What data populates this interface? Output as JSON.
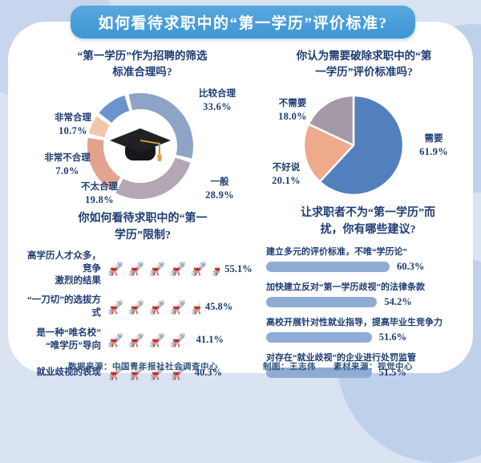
{
  "banner": {
    "title": "如何看待求职中的“第一学历”评价标准?"
  },
  "footer": {
    "source": "数据来源：中国青年报社社会调查中心",
    "author": "制图：王志伟",
    "material": "素材来源：视觉中心"
  },
  "colors": {
    "banner_blue": "#469cd6",
    "page_bg": "#d9e3f2",
    "heading_navy": "#1d3c74",
    "bar_blue": "#8fadd4"
  },
  "chart_data": [
    {
      "id": "donut",
      "type": "pie",
      "variant": "donut",
      "title_lines": [
        "“第一学历”作为招聘的筛选",
        "标准合理吗?"
      ],
      "start_angle_deg": -15,
      "center_icon": "graduation-cap",
      "legend_position": "around",
      "segments": [
        {
          "label": "比较合理",
          "value": 33.6,
          "display": "33.6%",
          "color": "#8da4c6"
        },
        {
          "label": "一般",
          "value": 28.9,
          "display": "28.9%",
          "color": "#b5a6b4"
        },
        {
          "label": "不太合理",
          "value": 19.8,
          "display": "19.8%",
          "color": "#e3a38f"
        },
        {
          "label": "非常不合理",
          "value": 7.0,
          "display": "7.0%",
          "color": "#f0c6ad"
        },
        {
          "label": "非常合理",
          "value": 10.7,
          "display": "10.7%",
          "color": "#6b94cd"
        }
      ]
    },
    {
      "id": "pie",
      "type": "pie",
      "title_lines": [
        "你认为需要破除求职中的“第",
        "一学历”评价标准吗?"
      ],
      "start_angle_deg": 0,
      "legend_position": "around",
      "segments": [
        {
          "label": "需要",
          "value": 61.9,
          "display": "61.9%",
          "color": "#527fbe"
        },
        {
          "label": "不好说",
          "value": 20.1,
          "display": "20.1%",
          "color": "#efa98b"
        },
        {
          "label": "不需要",
          "value": 18.0,
          "display": "18.0%",
          "color": "#a399a7"
        }
      ]
    },
    {
      "id": "picto",
      "type": "bar",
      "variant": "pictograph",
      "icon": "diploma-scroll",
      "icon_unit_percent": 10,
      "title_lines": [
        "你如何看待求职中的“第一",
        "学历”限制?"
      ],
      "rows": [
        {
          "label_lines": [
            "高学历人才众多，竞争",
            "激烈的结果"
          ],
          "value": 55.1,
          "display": "55.1%"
        },
        {
          "label_lines": [
            "“一刀切”的选拔方式"
          ],
          "value": 45.8,
          "display": "45.8%"
        },
        {
          "label_lines": [
            "是一种“唯名校”",
            "“唯学历”导向"
          ],
          "value": 41.1,
          "display": "41.1%"
        },
        {
          "label_lines": [
            "就业歧视的表现"
          ],
          "value": 40.3,
          "display": "40.3%"
        }
      ]
    },
    {
      "id": "bars",
      "type": "bar",
      "title_lines": [
        "让求职者不为“第一学历”而",
        "扰，你有哪些建议?"
      ],
      "bar_color": "#8fadd4",
      "xlim": [
        0,
        65
      ],
      "rows": [
        {
          "label": "建立多元的评价标准，不唯“学历论”",
          "value": 60.3,
          "display": "60.3%"
        },
        {
          "label": "加快建立反对“第一学历歧视”的法律条款",
          "value": 54.2,
          "display": "54.2%"
        },
        {
          "label": "高校开展针对性就业指导，提高毕业生竞争力",
          "value": 51.6,
          "display": "51.6%"
        },
        {
          "label": "对存在“就业歧视”的企业进行处罚监管",
          "value": 51.5,
          "display": "51.5%"
        }
      ]
    }
  ]
}
